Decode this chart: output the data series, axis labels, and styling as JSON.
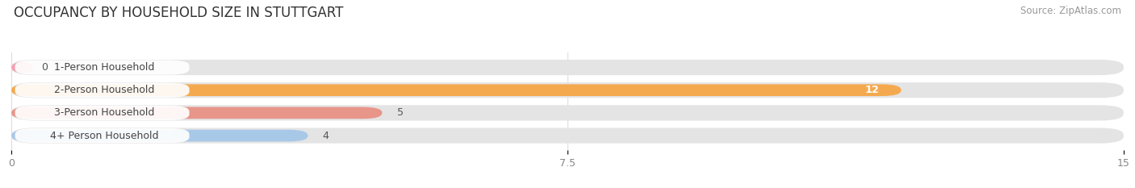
{
  "title": "OCCUPANCY BY HOUSEHOLD SIZE IN STUTTGART",
  "source": "Source: ZipAtlas.com",
  "categories": [
    "1-Person Household",
    "2-Person Household",
    "3-Person Household",
    "4+ Person Household"
  ],
  "values": [
    0,
    12,
    5,
    4
  ],
  "bar_colors": [
    "#f5a0b0",
    "#f5a94e",
    "#e8958a",
    "#a8c8e8"
  ],
  "background_color": "#ffffff",
  "bar_bg_color": "#e8e8e8",
  "xlim": [
    0,
    15
  ],
  "xticks": [
    0,
    7.5,
    15
  ],
  "title_fontsize": 12,
  "label_fontsize": 9,
  "value_fontsize": 9,
  "source_fontsize": 8.5,
  "label_box_color": "#ffffff"
}
